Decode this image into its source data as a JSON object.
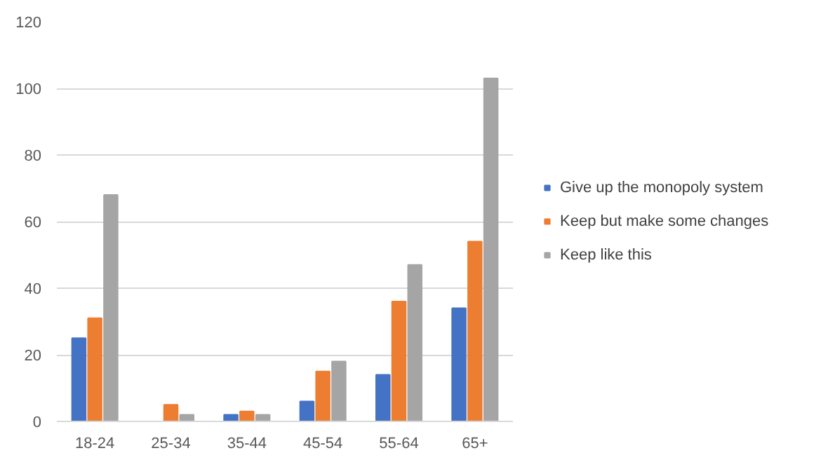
{
  "chart_data": {
    "type": "bar",
    "categories": [
      "18-24",
      "25-34",
      "35-44",
      "45-54",
      "55-64",
      "65+"
    ],
    "series": [
      {
        "name": "Give up the monopoly system",
        "color": "#4472c4",
        "values": [
          25,
          0,
          2,
          6,
          14,
          34
        ]
      },
      {
        "name": "Keep but make some changes",
        "color": "#ed7d31",
        "values": [
          31,
          5,
          3,
          15,
          36,
          54
        ]
      },
      {
        "name": "Keep like this",
        "color": "#a5a5a5",
        "values": [
          68,
          2,
          2,
          18,
          47,
          103
        ]
      }
    ],
    "ylim": [
      0,
      120
    ],
    "yticks": [
      0,
      20,
      40,
      60,
      80,
      100,
      120
    ],
    "grid": "y",
    "legend": "right"
  }
}
